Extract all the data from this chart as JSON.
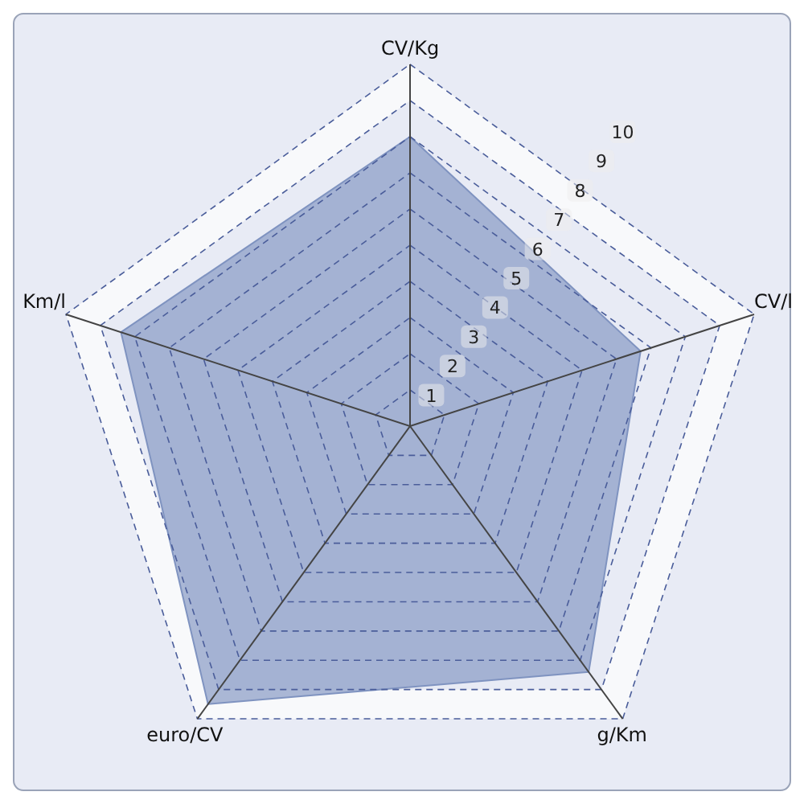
{
  "chart_data": {
    "type": "radar",
    "categories": [
      "CV/Kg",
      "CV/l",
      "g/Km",
      "euro/CV",
      "Km/l"
    ],
    "series": [
      {
        "color": "#7f93c0",
        "values": [
          8,
          6.7,
          8.4,
          9.5,
          8.4
        ]
      }
    ],
    "ylim": [
      0,
      10
    ],
    "yticks": [
      1,
      2,
      3,
      4,
      5,
      6,
      7,
      8,
      9,
      10
    ],
    "grid": true
  }
}
